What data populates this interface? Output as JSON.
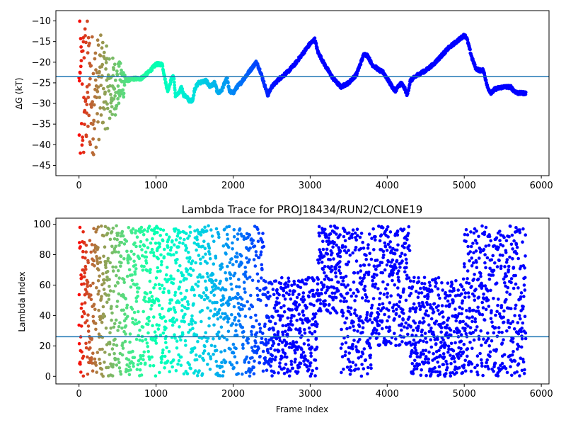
{
  "chart_data": [
    {
      "type": "scatter",
      "title": "",
      "xlabel": "",
      "ylabel": "ΔG (kT)",
      "xlim": [
        -300,
        6100
      ],
      "ylim": [
        -47.5,
        -7.5
      ],
      "xticks": [
        0,
        1000,
        2000,
        3000,
        4000,
        5000,
        6000
      ],
      "yticks": [
        -45,
        -40,
        -35,
        -30,
        -25,
        -20,
        -15,
        -10
      ],
      "hline": -23.5,
      "hline_color": "#1f77b4",
      "colormap": "rainbow_r",
      "point_count": 5800,
      "trace": [
        [
          0,
          -30
        ],
        [
          100,
          -26
        ],
        [
          200,
          -28
        ],
        [
          300,
          -25
        ],
        [
          400,
          -27
        ],
        [
          500,
          -25.5
        ],
        [
          600,
          -24.5
        ],
        [
          700,
          -24
        ],
        [
          800,
          -24
        ],
        [
          900,
          -22.5
        ],
        [
          1000,
          -20.5
        ],
        [
          1080,
          -20.5
        ],
        [
          1120,
          -24.5
        ],
        [
          1150,
          -27
        ],
        [
          1200,
          -24
        ],
        [
          1230,
          -23.5
        ],
        [
          1250,
          -28
        ],
        [
          1300,
          -27.5
        ],
        [
          1330,
          -26
        ],
        [
          1360,
          -28
        ],
        [
          1400,
          -28.5
        ],
        [
          1440,
          -29.5
        ],
        [
          1480,
          -29
        ],
        [
          1500,
          -26.5
        ],
        [
          1550,
          -25
        ],
        [
          1650,
          -24.5
        ],
        [
          1700,
          -26
        ],
        [
          1760,
          -25
        ],
        [
          1800,
          -27.5
        ],
        [
          1850,
          -27
        ],
        [
          1900,
          -24.5
        ],
        [
          1920,
          -23.5
        ],
        [
          1950,
          -27
        ],
        [
          2000,
          -27.5
        ],
        [
          2050,
          -26
        ],
        [
          2100,
          -25
        ],
        [
          2200,
          -22.5
        ],
        [
          2300,
          -20
        ],
        [
          2350,
          -22
        ],
        [
          2400,
          -25
        ],
        [
          2450,
          -28
        ],
        [
          2500,
          -26
        ],
        [
          2600,
          -24
        ],
        [
          2700,
          -22.5
        ],
        [
          2800,
          -20.5
        ],
        [
          2900,
          -18
        ],
        [
          3000,
          -15.5
        ],
        [
          3060,
          -14.5
        ],
        [
          3100,
          -17.5
        ],
        [
          3200,
          -21
        ],
        [
          3300,
          -24
        ],
        [
          3400,
          -26
        ],
        [
          3500,
          -25
        ],
        [
          3600,
          -23
        ],
        [
          3700,
          -18
        ],
        [
          3750,
          -18.5
        ],
        [
          3800,
          -20.5
        ],
        [
          3900,
          -22
        ],
        [
          3950,
          -22.5
        ],
        [
          4000,
          -24
        ],
        [
          4100,
          -27
        ],
        [
          4180,
          -25
        ],
        [
          4230,
          -26.5
        ],
        [
          4260,
          -28
        ],
        [
          4300,
          -24.5
        ],
        [
          4400,
          -23
        ],
        [
          4500,
          -22
        ],
        [
          4600,
          -20.5
        ],
        [
          4700,
          -18.5
        ],
        [
          4800,
          -16.5
        ],
        [
          4900,
          -15
        ],
        [
          5000,
          -13.5
        ],
        [
          5030,
          -14
        ],
        [
          5100,
          -19
        ],
        [
          5150,
          -21.5
        ],
        [
          5200,
          -22
        ],
        [
          5250,
          -22
        ],
        [
          5300,
          -26
        ],
        [
          5350,
          -27.5
        ],
        [
          5400,
          -26.5
        ],
        [
          5500,
          -26
        ],
        [
          5600,
          -26
        ],
        [
          5650,
          -27
        ],
        [
          5700,
          -27.5
        ],
        [
          5800,
          -27.5
        ]
      ]
    },
    {
      "type": "scatter",
      "title": "Lambda Trace for PROJ18434/RUN2/CLONE19",
      "xlabel": "Frame Index",
      "ylabel": "Lambda Index",
      "xlim": [
        -300,
        6100
      ],
      "ylim": [
        -5,
        104
      ],
      "xticks": [
        0,
        1000,
        2000,
        3000,
        4000,
        5000,
        6000
      ],
      "yticks": [
        0,
        20,
        40,
        60,
        80,
        100
      ],
      "hline": 26,
      "hline_color": "#1f77b4",
      "colormap": "rainbow_r",
      "point_count": 5800,
      "regions": [
        [
          0,
          600,
          0,
          99
        ],
        [
          600,
          1200,
          0,
          99
        ],
        [
          1200,
          2400,
          0,
          99
        ],
        [
          2400,
          3100,
          0,
          65
        ],
        [
          3100,
          3400,
          40,
          99
        ],
        [
          3400,
          3800,
          0,
          99
        ],
        [
          3800,
          4300,
          20,
          99
        ],
        [
          4300,
          5000,
          0,
          65
        ],
        [
          5000,
          5800,
          0,
          99
        ]
      ]
    }
  ]
}
